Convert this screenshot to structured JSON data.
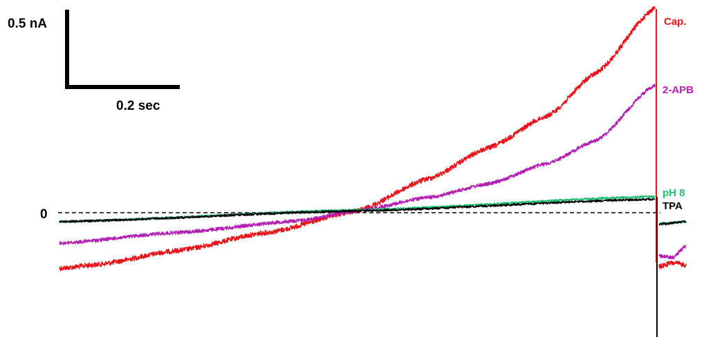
{
  "chart_data": {
    "type": "line",
    "zero_label": "0",
    "scale_bar": {
      "y_label": "0.5 nA",
      "x_label": "0.2 sec"
    },
    "series": [
      {
        "name": "Cap.",
        "color": "#e8141a",
        "ramp_points": [
          [
            0.0,
            -0.62
          ],
          [
            0.06,
            -0.58
          ],
          [
            0.2,
            -0.42
          ],
          [
            0.35,
            -0.22
          ],
          [
            0.5,
            0.02
          ],
          [
            0.62,
            0.38
          ],
          [
            0.72,
            0.72
          ],
          [
            0.82,
            1.08
          ],
          [
            0.9,
            1.55
          ],
          [
            1.0,
            2.28
          ]
        ],
        "post_points": [
          [
            0.0,
            -0.6
          ],
          [
            0.5,
            -0.56
          ],
          [
            1.0,
            -0.58
          ]
        ]
      },
      {
        "name": "2-APB",
        "color": "#b21eb2",
        "ramp_points": [
          [
            0.0,
            -0.34
          ],
          [
            0.2,
            -0.22
          ],
          [
            0.4,
            -0.09
          ],
          [
            0.5,
            0.02
          ],
          [
            0.62,
            0.17
          ],
          [
            0.72,
            0.32
          ],
          [
            0.82,
            0.55
          ],
          [
            0.9,
            0.8
          ],
          [
            1.0,
            1.42
          ]
        ],
        "post_points": [
          [
            0.0,
            -0.48
          ],
          [
            0.5,
            -0.5
          ],
          [
            1.0,
            -0.37
          ]
        ]
      },
      {
        "name": "pH 8",
        "color": "#1fbf73",
        "ramp_points": [
          [
            0.0,
            -0.1
          ],
          [
            0.5,
            0.03
          ],
          [
            1.0,
            0.18
          ]
        ],
        "post_points": [
          [
            0.0,
            -0.12
          ],
          [
            1.0,
            -0.1
          ]
        ]
      },
      {
        "name": "TPA",
        "color": "#000000",
        "ramp_points": [
          [
            0.0,
            -0.1
          ],
          [
            0.5,
            0.02
          ],
          [
            1.0,
            0.15
          ]
        ],
        "post_points": [
          [
            0.0,
            -0.13
          ],
          [
            1.0,
            -0.1
          ]
        ]
      }
    ]
  }
}
